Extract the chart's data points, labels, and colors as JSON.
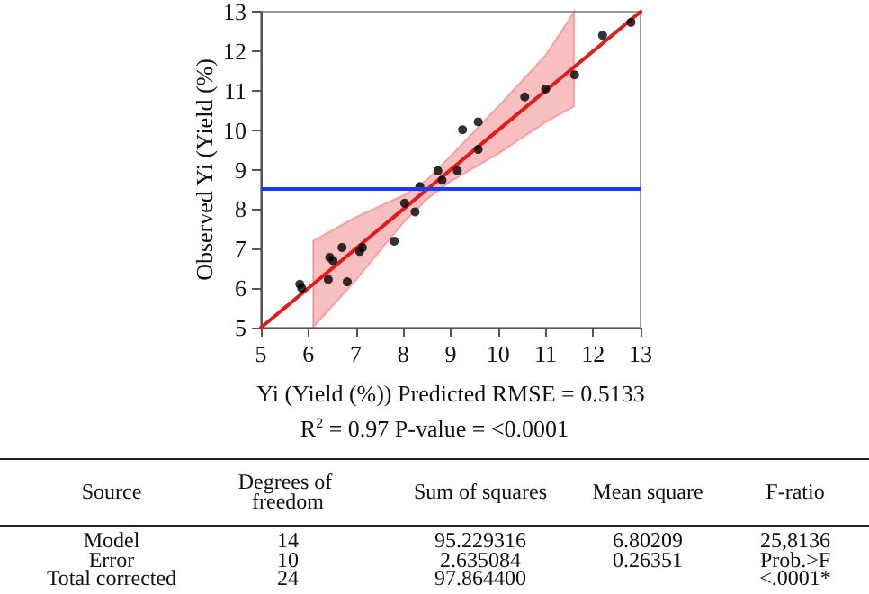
{
  "chart_data": {
    "type": "scatter",
    "xlabel": "Yi (Yield (%)) Predicted RMSE = 0.5133",
    "ylabel": "Observed Yi (Yield (%)",
    "xlim": [
      5,
      13
    ],
    "ylim": [
      5,
      13
    ],
    "xticks": [
      5,
      6,
      7,
      8,
      9,
      10,
      11,
      12,
      13
    ],
    "yticks": [
      5,
      6,
      7,
      8,
      9,
      10,
      11,
      12,
      13
    ],
    "series": [
      {
        "type": "line",
        "color": "#e31a1c",
        "marker": "none",
        "x": [
          5,
          6.1,
          7,
          8,
          8.5,
          9,
          10,
          11,
          11.6,
          13
        ],
        "values": [
          5,
          6.1,
          7,
          8,
          8.5,
          9,
          10,
          11,
          11.6,
          13
        ],
        "lower": [
          null,
          5,
          6.2,
          7.65,
          8.25,
          8.7,
          9.4,
          10.2,
          10.6,
          null
        ],
        "upper": [
          null,
          7.2,
          7.8,
          8.35,
          8.75,
          9.35,
          10.6,
          11.9,
          13,
          null
        ]
      },
      {
        "color": "#000000",
        "marker": "circle",
        "x": [
          5.82,
          5.86,
          6.42,
          6.45,
          6.52,
          6.71,
          6.82,
          7.08,
          7.14,
          7.81,
          8.03,
          8.25,
          8.35,
          8.73,
          8.82,
          9.14,
          9.25,
          9.58,
          9.58,
          10.56,
          11.0,
          11.61,
          12.2,
          12.8
        ],
        "values": [
          6.1,
          6.0,
          6.22,
          6.78,
          6.7,
          7.03,
          6.16,
          6.93,
          7.03,
          7.19,
          8.15,
          7.93,
          8.57,
          8.97,
          8.73,
          8.97,
          10.01,
          10.21,
          9.51,
          10.84,
          11.04,
          11.4,
          12.4,
          12.73
        ]
      }
    ],
    "ref_lines": [
      {
        "axis": "y",
        "value": 8.5,
        "color": "#1a3cff"
      }
    ],
    "annotations": [
      "R$^{2}$ = 0.97 P-value = <0.0001",
      "Source",
      "Degrees of freedom",
      "Sum of squares",
      "Mean square",
      "F-ratio",
      "Model",
      "14",
      "95.229316",
      "6.80209",
      "25,8136",
      "Error",
      "10",
      "2.635084",
      "0.26351",
      "Prob.>F",
      "Total corrected",
      "24",
      "97.864400",
      null,
      "<.0001*"
    ]
  }
}
